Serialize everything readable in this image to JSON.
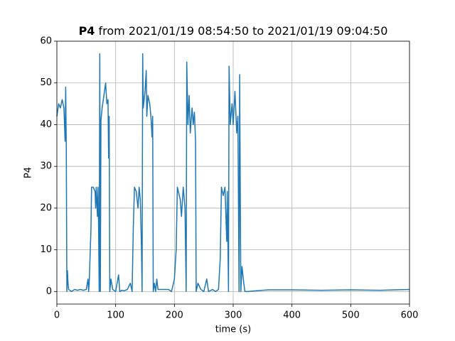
{
  "chart_data": {
    "type": "line",
    "title_bold": "P4",
    "title": "from 2021/01/19 08:54:50 to 2021/01/19 09:04:50",
    "xlabel": "time (s)",
    "ylabel": "P4",
    "color": "#1f77b4",
    "grid": true,
    "xlim": [
      0,
      600
    ],
    "xticks": [
      0,
      100,
      200,
      300,
      400,
      500,
      600
    ],
    "ylim": [
      -3,
      60
    ],
    "yticks": [
      0,
      10,
      20,
      30,
      40,
      50,
      60
    ],
    "x": [
      0,
      3,
      6,
      9,
      12,
      14,
      15,
      16,
      17,
      18,
      19,
      20,
      25,
      30,
      35,
      40,
      45,
      50,
      53,
      54,
      55,
      58,
      59,
      62,
      65,
      66,
      67,
      69,
      70,
      71,
      72,
      73,
      74,
      75,
      77,
      80,
      83,
      85,
      87,
      88,
      89,
      90,
      92,
      95,
      100,
      105,
      107,
      110,
      115,
      120,
      125,
      128,
      130,
      132,
      135,
      138,
      140,
      142,
      144,
      145,
      146,
      147,
      150,
      152,
      153,
      155,
      158,
      160,
      162,
      163,
      164,
      166,
      168,
      170,
      172,
      180,
      190,
      195,
      200,
      203,
      205,
      210,
      212,
      215,
      218,
      220,
      221,
      223,
      225,
      227,
      230,
      232,
      234,
      236,
      237,
      240,
      245,
      250,
      255,
      258,
      265,
      270,
      275,
      278,
      280,
      283,
      286,
      289,
      290,
      292,
      293,
      295,
      298,
      300,
      303,
      306,
      308,
      310,
      311,
      313,
      315,
      318,
      320,
      325,
      340,
      360,
      400,
      450,
      500,
      550,
      575,
      600
    ],
    "values": [
      42,
      45,
      44,
      46,
      44,
      36,
      49,
      35,
      0,
      5,
      2,
      0.5,
      0,
      0.5,
      0.3,
      0.5,
      0.3,
      0.5,
      3,
      0,
      2,
      15,
      25,
      25,
      24,
      20,
      25,
      18,
      25,
      15,
      0,
      57,
      0,
      41,
      44,
      47,
      50,
      45,
      46,
      32,
      42,
      0,
      3,
      0.5,
      0,
      4,
      0,
      0.3,
      0.2,
      0.5,
      2,
      0,
      15,
      25,
      24,
      20,
      25,
      22,
      10,
      0,
      57,
      44,
      48,
      53,
      42,
      47,
      45,
      42,
      37,
      42,
      0,
      2,
      0,
      3,
      0.5,
      0.5,
      0.5,
      0,
      3,
      10,
      25,
      22,
      18,
      25,
      20,
      0,
      55,
      40,
      47,
      38,
      44,
      40,
      43,
      36,
      0,
      2,
      0.5,
      0,
      3,
      0,
      0.5,
      0,
      0.5,
      8,
      25,
      23,
      25,
      12,
      24,
      0,
      54,
      40,
      45,
      40,
      48,
      38,
      42,
      0,
      52,
      0,
      6,
      2,
      0,
      0,
      0.2,
      0.4,
      0.4,
      0.3,
      0.4,
      0.3,
      0.4,
      0.5
    ]
  }
}
